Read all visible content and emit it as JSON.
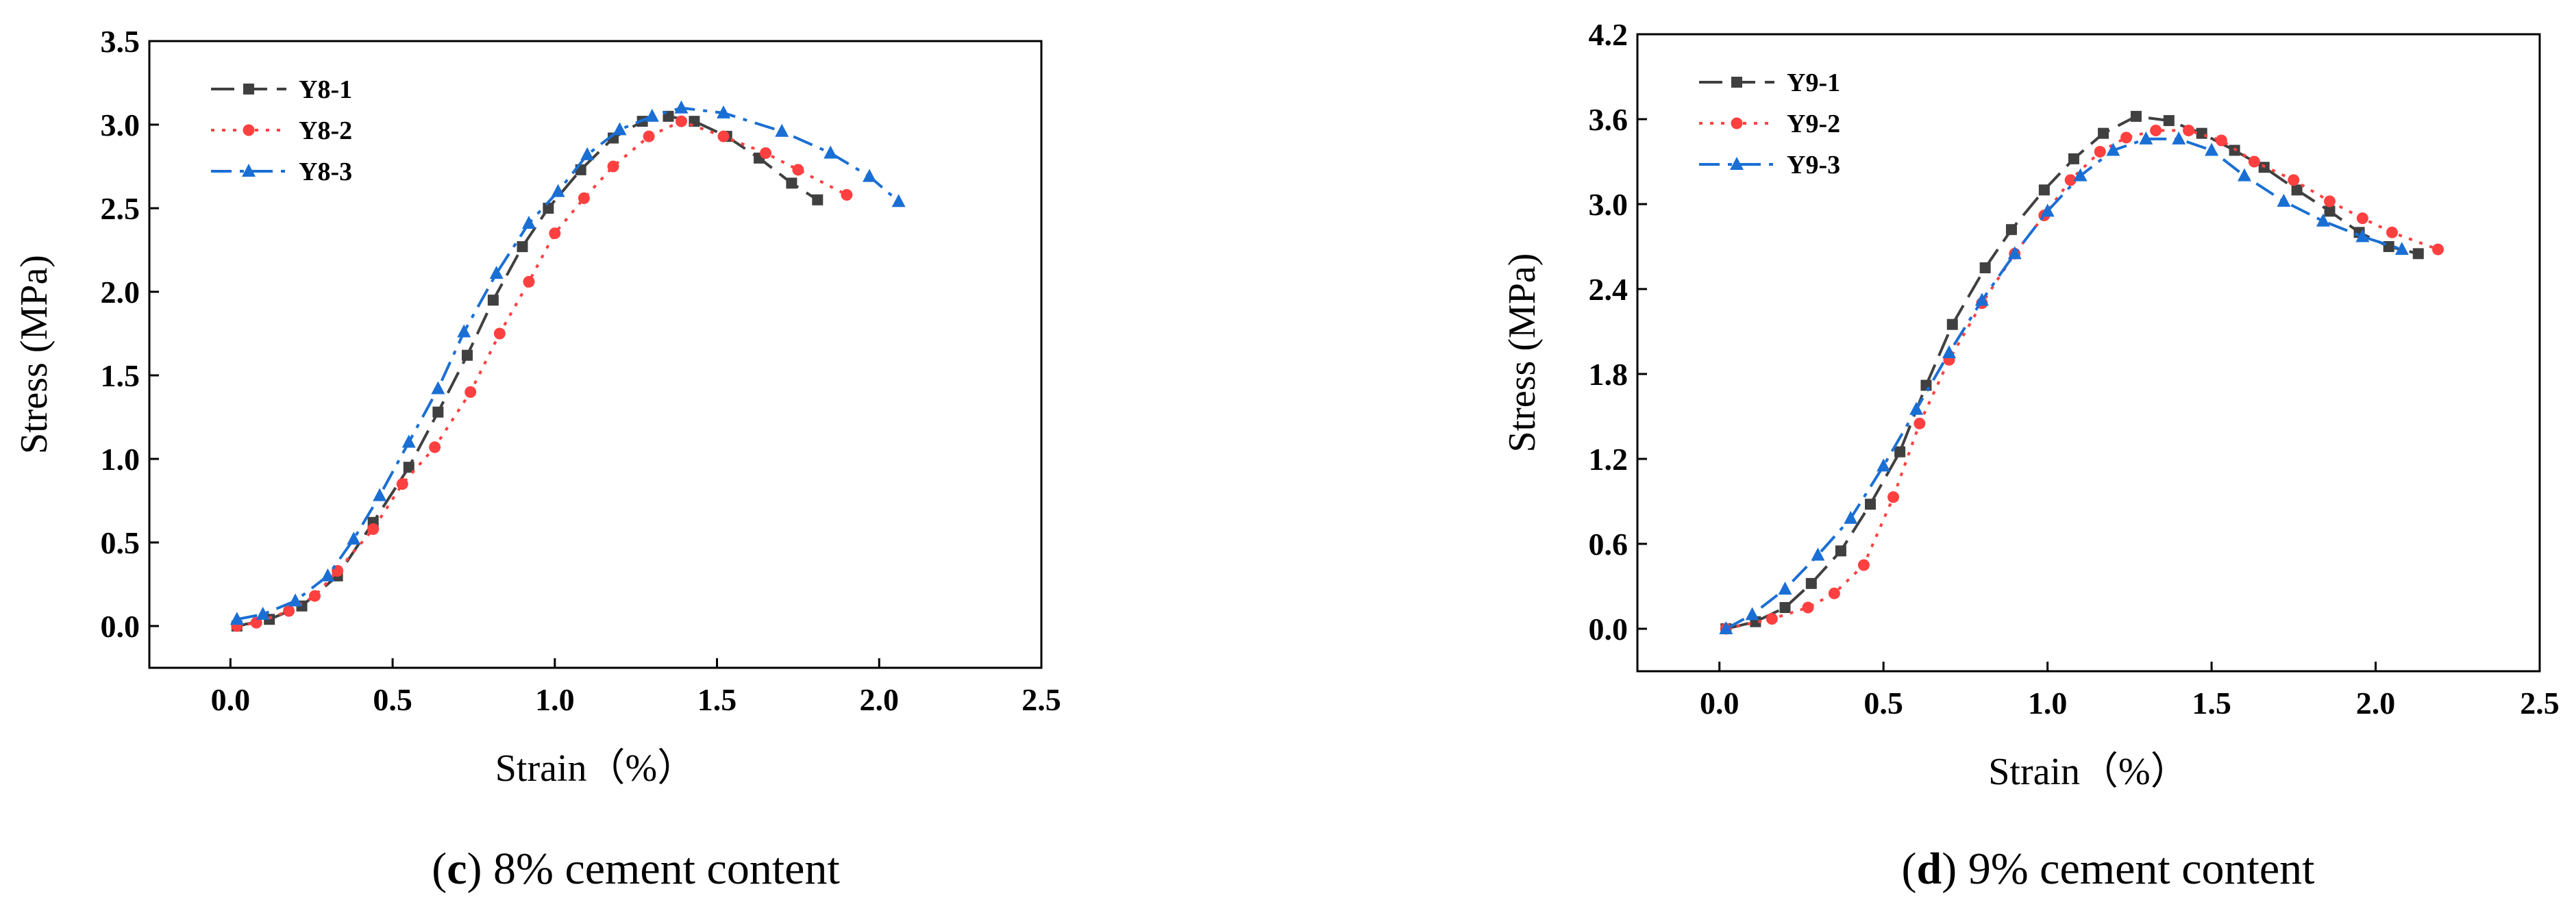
{
  "chart_data": [
    {
      "type": "line",
      "caption": {
        "letter": "c",
        "text": " 8% cement content",
        "open": "(",
        "close": ")"
      },
      "xlabel": "Strain（%）",
      "ylabel": "Stress (MPa)",
      "xlim": [
        -0.25,
        2.5
      ],
      "ylim": [
        -0.25,
        3.5
      ],
      "xticks": [
        0.0,
        0.5,
        1.0,
        1.5,
        2.0,
        2.5
      ],
      "xtick_labels": [
        "0.0",
        "0.5",
        "1.0",
        "1.5",
        "2.0",
        "2.5"
      ],
      "yticks": [
        0.0,
        0.5,
        1.0,
        1.5,
        2.0,
        2.5,
        3.0,
        3.5
      ],
      "ytick_labels": [
        "0.0",
        "0.5",
        "1.0",
        "1.5",
        "2.0",
        "2.5",
        "3.0",
        "3.5"
      ],
      "grid": false,
      "legend": "top-left",
      "series": [
        {
          "name": "Y8-1",
          "color": "#404040",
          "dash": "dash",
          "marker": "square",
          "x": [
            0.02,
            0.12,
            0.22,
            0.33,
            0.44,
            0.55,
            0.64,
            0.73,
            0.81,
            0.9,
            0.98,
            1.08,
            1.18,
            1.27,
            1.35,
            1.43,
            1.53,
            1.63,
            1.73,
            1.81
          ],
          "y": [
            0.0,
            0.04,
            0.12,
            0.3,
            0.62,
            0.95,
            1.28,
            1.62,
            1.95,
            2.27,
            2.5,
            2.73,
            2.92,
            3.02,
            3.05,
            3.02,
            2.93,
            2.8,
            2.65,
            2.55
          ]
        },
        {
          "name": "Y8-2",
          "color": "#ff4040",
          "dash": "dot",
          "marker": "circle",
          "x": [
            0.02,
            0.08,
            0.18,
            0.26,
            0.33,
            0.44,
            0.53,
            0.63,
            0.74,
            0.83,
            0.92,
            1.0,
            1.09,
            1.18,
            1.29,
            1.39,
            1.52,
            1.65,
            1.75,
            1.9
          ],
          "y": [
            0.0,
            0.02,
            0.09,
            0.18,
            0.33,
            0.58,
            0.85,
            1.07,
            1.4,
            1.75,
            2.06,
            2.35,
            2.56,
            2.75,
            2.93,
            3.02,
            2.93,
            2.83,
            2.73,
            2.58
          ]
        },
        {
          "name": "Y8-3",
          "color": "#1a6fd4",
          "dash": "dashdot",
          "marker": "triangle",
          "x": [
            0.02,
            0.1,
            0.2,
            0.3,
            0.38,
            0.46,
            0.55,
            0.64,
            0.72,
            0.82,
            0.92,
            1.01,
            1.1,
            1.2,
            1.3,
            1.39,
            1.52,
            1.7,
            1.85,
            1.97,
            2.06
          ],
          "y": [
            0.04,
            0.07,
            0.15,
            0.3,
            0.52,
            0.78,
            1.1,
            1.42,
            1.76,
            2.11,
            2.41,
            2.6,
            2.82,
            2.97,
            3.05,
            3.1,
            3.07,
            2.96,
            2.83,
            2.69,
            2.54
          ]
        }
      ]
    },
    {
      "type": "line",
      "caption": {
        "letter": "d",
        "text": " 9% cement content",
        "open": "(",
        "close": ")"
      },
      "xlabel": "Strain（%）",
      "ylabel": "Stress (MPa)",
      "xlim": [
        -0.25,
        2.5
      ],
      "ylim": [
        -0.3,
        4.2
      ],
      "xticks": [
        0.0,
        0.5,
        1.0,
        1.5,
        2.0,
        2.5
      ],
      "xtick_labels": [
        "0.0",
        "0.5",
        "1.0",
        "1.5",
        "2.0",
        "2.5"
      ],
      "yticks": [
        0.0,
        0.6,
        1.2,
        1.8,
        2.4,
        3.0,
        3.6,
        4.2
      ],
      "ytick_labels": [
        "0.0",
        "0.6",
        "1.2",
        "1.8",
        "2.4",
        "3.0",
        "3.6",
        "4.2"
      ],
      "grid": false,
      "legend": "top-left",
      "series": [
        {
          "name": "Y9-1",
          "color": "#404040",
          "dash": "dash",
          "marker": "square",
          "x": [
            0.02,
            0.11,
            0.2,
            0.28,
            0.37,
            0.46,
            0.55,
            0.63,
            0.71,
            0.81,
            0.89,
            0.99,
            1.08,
            1.17,
            1.27,
            1.37,
            1.47,
            1.57,
            1.66,
            1.76,
            1.86,
            1.95,
            2.04,
            2.13
          ],
          "y": [
            0.0,
            0.05,
            0.15,
            0.32,
            0.55,
            0.88,
            1.25,
            1.72,
            2.15,
            2.55,
            2.82,
            3.1,
            3.32,
            3.5,
            3.62,
            3.59,
            3.5,
            3.38,
            3.26,
            3.1,
            2.95,
            2.8,
            2.7,
            2.65
          ]
        },
        {
          "name": "Y9-2",
          "color": "#ff4040",
          "dash": "dot",
          "marker": "circle",
          "x": [
            0.02,
            0.16,
            0.27,
            0.35,
            0.44,
            0.53,
            0.61,
            0.7,
            0.8,
            0.9,
            0.99,
            1.07,
            1.16,
            1.24,
            1.33,
            1.43,
            1.53,
            1.63,
            1.75,
            1.86,
            1.96,
            2.05,
            2.19
          ],
          "y": [
            0.0,
            0.07,
            0.15,
            0.25,
            0.45,
            0.93,
            1.45,
            1.9,
            2.3,
            2.65,
            2.92,
            3.17,
            3.37,
            3.47,
            3.52,
            3.52,
            3.45,
            3.3,
            3.17,
            3.02,
            2.9,
            2.8,
            2.68
          ]
        },
        {
          "name": "Y9-3",
          "color": "#1a6fd4",
          "dash": "dashdot",
          "marker": "triangle",
          "x": [
            0.02,
            0.1,
            0.2,
            0.3,
            0.4,
            0.5,
            0.6,
            0.7,
            0.8,
            0.9,
            1.0,
            1.1,
            1.2,
            1.3,
            1.4,
            1.5,
            1.6,
            1.72,
            1.84,
            1.96,
            2.08
          ],
          "y": [
            0.0,
            0.1,
            0.28,
            0.52,
            0.78,
            1.15,
            1.55,
            1.95,
            2.32,
            2.65,
            2.95,
            3.2,
            3.38,
            3.46,
            3.46,
            3.38,
            3.2,
            3.02,
            2.88,
            2.77,
            2.68
          ]
        }
      ]
    }
  ]
}
